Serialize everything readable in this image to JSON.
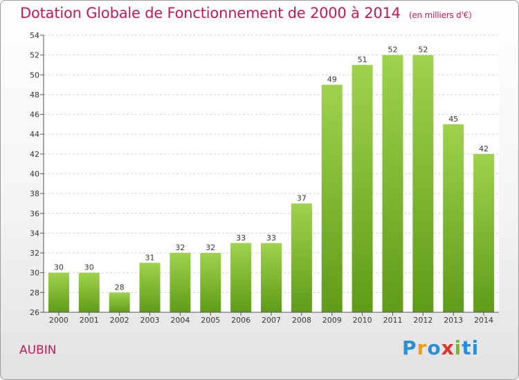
{
  "header": {
    "title": "Dotation Globale de Fonctionnement de 2000 à 2014",
    "unit": "(en milliers d'€)"
  },
  "footer": {
    "town": "AUBIN",
    "logo_letters": [
      "P",
      "r",
      "o",
      "x",
      "i",
      "ti"
    ]
  },
  "colors": {
    "title": "#c2185b",
    "bar_top": "#9fd24d",
    "bar_bottom": "#5f9c18"
  },
  "chart_data": {
    "type": "bar",
    "title": "Dotation Globale de Fonctionnement de 2000 à 2014",
    "subtitle": "(en milliers d'€)",
    "xlabel": "",
    "ylabel": "",
    "categories": [
      "2000",
      "2001",
      "2002",
      "2003",
      "2004",
      "2005",
      "2006",
      "2007",
      "2008",
      "2009",
      "2010",
      "2011",
      "2012",
      "2013",
      "2014"
    ],
    "values": [
      30,
      30,
      28,
      31,
      32,
      32,
      33,
      33,
      37,
      49,
      51,
      52,
      52,
      45,
      42
    ],
    "ylim": [
      26,
      54
    ],
    "yticks": [
      26,
      28,
      30,
      32,
      34,
      36,
      38,
      40,
      42,
      44,
      46,
      48,
      50,
      52,
      54
    ],
    "grid": true
  }
}
